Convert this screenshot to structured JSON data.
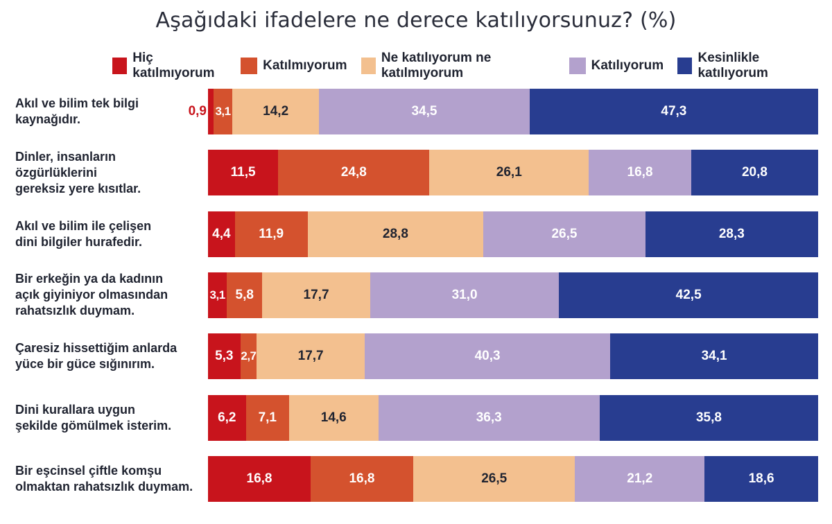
{
  "chart_data": {
    "type": "bar",
    "orientation": "horizontal",
    "stacked": true,
    "percent_stacked": true,
    "title": "Aşağıdaki ifadelere ne derece katılıyorsunuz? (%)",
    "legend_position": "top",
    "categories": [
      "Akıl ve bilim tek bilgi kaynağıdır.",
      "Dinler, insanların özgürlüklerini\ngereksiz yere kısıtlar.",
      "Akıl ve bilim ile çelişen\ndini bilgiler hurafedir.",
      "Bir erkeğin ya da kadının\naçık giyiniyor olmasından\nrahatsızlık duymam.",
      "Çaresiz hissettiğim anlarda\nyüce bir güce sığınırım.",
      "Dini kurallara uygun\nşekilde gömülmek isterim.",
      "Bir eşcinsel çiftle komşu\nolmaktan rahatsızlık duymam."
    ],
    "series": [
      {
        "name": "Hiç katılmıyorum",
        "color": "#c8141c",
        "values": [
          0.9,
          11.5,
          4.4,
          3.1,
          5.3,
          6.2,
          16.8
        ],
        "labels": [
          "0,9",
          "11,5",
          "4,4",
          "3,1",
          "5,3",
          "6,2",
          "16,8"
        ]
      },
      {
        "name": "Katılmıyorum",
        "color": "#d4522e",
        "values": [
          3.1,
          24.8,
          11.9,
          5.8,
          2.7,
          7.1,
          16.8
        ],
        "labels": [
          "3,1",
          "24,8",
          "11,9",
          "5,8",
          "2,7",
          "7,1",
          "16,8"
        ]
      },
      {
        "name": "Ne katılıyorum ne katılmıyorum",
        "color": "#f3c08f",
        "values": [
          14.2,
          26.1,
          28.8,
          17.7,
          17.7,
          14.6,
          26.5
        ],
        "labels": [
          "14,2",
          "26,1",
          "28,8",
          "17,7",
          "17,7",
          "14,6",
          "26,5"
        ]
      },
      {
        "name": "Katılıyorum",
        "color": "#b3a1cd",
        "values": [
          34.5,
          16.8,
          26.5,
          31.0,
          40.3,
          36.3,
          21.2
        ],
        "labels": [
          "34,5",
          "16,8",
          "26,5",
          "31,0",
          "40,3",
          "36,3",
          "21,2"
        ]
      },
      {
        "name": "Kesinlikle katılıyorum",
        "color": "#283d90",
        "values": [
          47.3,
          20.8,
          28.3,
          42.5,
          34.1,
          35.8,
          18.6
        ],
        "labels": [
          "47,3",
          "20,8",
          "28,3",
          "42,5",
          "34,1",
          "35,8",
          "18,6"
        ]
      }
    ],
    "xlim": [
      0,
      100
    ],
    "grid": false
  }
}
